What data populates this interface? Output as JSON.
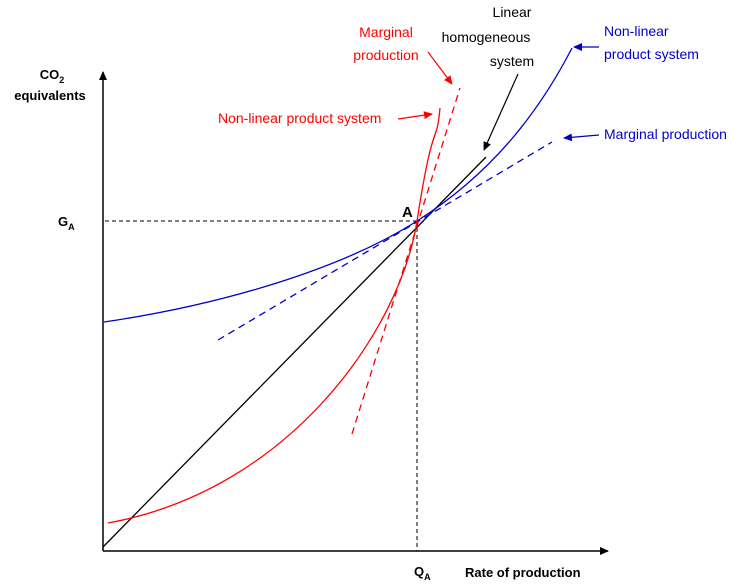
{
  "axes": {
    "y_label_line1": "CO",
    "y_label_sub": "2",
    "y_label_line2": "equivalents",
    "x_label": "Rate of production",
    "y_tick_main": "G",
    "y_tick_sub": "A",
    "x_tick_main": "Q",
    "x_tick_sub": "A"
  },
  "point": {
    "label": "A"
  },
  "annotations": {
    "linear": [
      "Linear",
      "homogeneous",
      "system"
    ],
    "red_marginal": [
      "Marginal",
      "production"
    ],
    "red_nonlinear": "Non-linear product system",
    "blue_nonlinear": [
      "Non-linear",
      "product system"
    ],
    "blue_marginal": "Marginal production"
  },
  "colors": {
    "red": "#ff0000",
    "blue": "#0000cc",
    "black": "#000000"
  }
}
